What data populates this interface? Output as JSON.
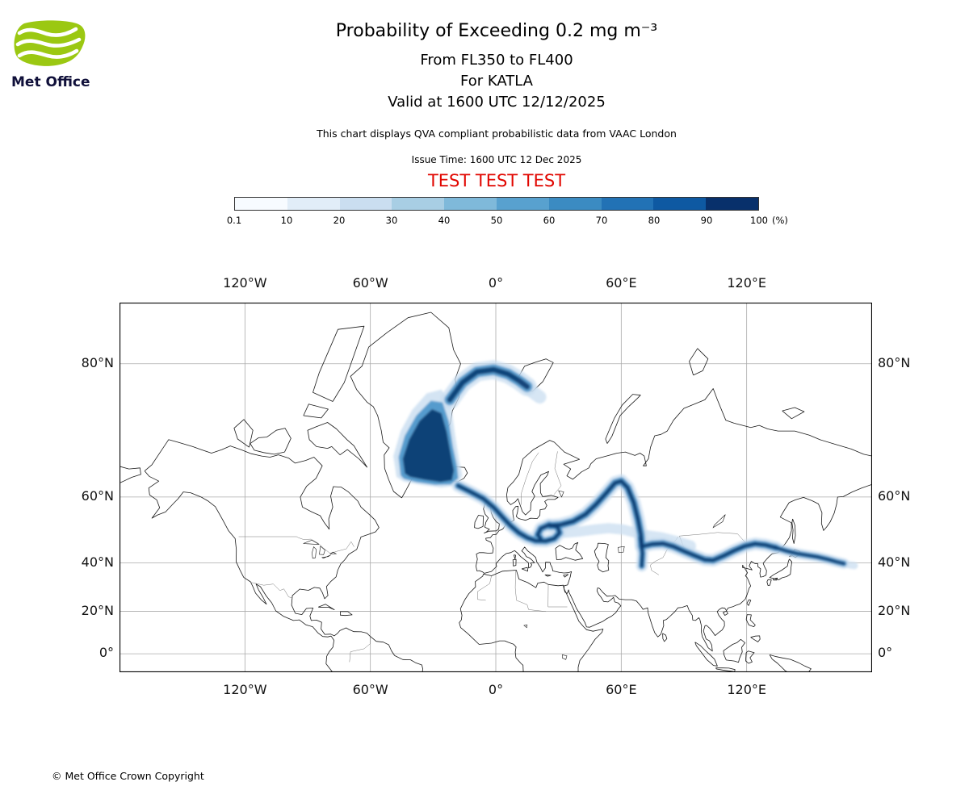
{
  "colors": {
    "accent_green": "#9bc812",
    "logo_navy": "#10103a",
    "test_red": "#e10600",
    "map_grid": "#aaaaaa",
    "coast": "#1a1a1a",
    "border": "#777777"
  },
  "logo": {
    "text": "Met Office"
  },
  "header": {
    "title": "Probability of Exceeding 0.2 mg m⁻³",
    "subtitle_levels": "From FL350 to FL400",
    "subtitle_volcano": "For KATLA",
    "subtitle_valid": "Valid at 1600 UTC 12/12/2025",
    "note": "This chart displays QVA compliant probabilistic data from VAAC London",
    "issue_time": "Issue Time: 1600 UTC 12 Dec 2025",
    "test_banner": "TEST TEST TEST"
  },
  "colorbar": {
    "tick_labels": [
      "0.1",
      "10",
      "20",
      "30",
      "40",
      "50",
      "60",
      "70",
      "80",
      "90",
      "100"
    ],
    "unit": "(%)",
    "colors": [
      "#f7fbff",
      "#e1edf8",
      "#cadef0",
      "#a8cee4",
      "#7fb9da",
      "#58a1cf",
      "#3b8bc2",
      "#2272b5",
      "#0e59a2",
      "#08306b"
    ]
  },
  "map": {
    "x_ticks": [
      {
        "label": "120°W",
        "lon": -120
      },
      {
        "label": "60°W",
        "lon": -60
      },
      {
        "label": "0°",
        "lon": 0
      },
      {
        "label": "60°E",
        "lon": 60
      },
      {
        "label": "120°E",
        "lon": 120
      }
    ],
    "y_ticks": [
      {
        "label": "80°N",
        "lat": 80
      },
      {
        "label": "60°N",
        "lat": 60
      },
      {
        "label": "40°N",
        "lat": 40
      },
      {
        "label": "20°N",
        "lat": 20
      },
      {
        "label": "0°",
        "lat": 0
      }
    ]
  },
  "footer": {
    "copyright": "© Met Office Crown Copyright"
  },
  "chart_data": {
    "type": "heatmap",
    "title": "Probability of Exceeding 0.2 mg m⁻³",
    "threshold": "0.2 mg m⁻³",
    "layer": "FL350 to FL400",
    "volcano": "KATLA",
    "valid_time": "1600 UTC 12/12/2025",
    "issue_time": "1600 UTC 12 Dec 2025",
    "source": "VAAC London",
    "units": "%",
    "scale_ticks": [
      0.1,
      10,
      20,
      30,
      40,
      50,
      60,
      70,
      80,
      90,
      100
    ],
    "projection": "mercator",
    "lon_range": [
      -180,
      180
    ],
    "lat_range": [
      -8.9,
      84
    ],
    "grid": {
      "lons": [
        -120,
        -60,
        0,
        60,
        120
      ],
      "lats": [
        0,
        20,
        40,
        60,
        80
      ]
    },
    "plume": {
      "colors": {
        "low": "#c9ddf0",
        "mid": "#4893c9",
        "high": "#0c3d73"
      },
      "core": {
        "outer": [
          [
            -47.5,
            64.5
          ],
          [
            -49,
            68.5
          ],
          [
            -45.5,
            72.5
          ],
          [
            -40,
            75.3
          ],
          [
            -33,
            77.2
          ],
          [
            -26,
            77.6
          ],
          [
            -21.5,
            76
          ],
          [
            -19.5,
            72
          ],
          [
            -17.5,
            67.5
          ],
          [
            -16,
            64.8
          ],
          [
            -19,
            62.6
          ],
          [
            -26,
            62.2
          ],
          [
            -36,
            62.8
          ],
          [
            -44,
            63.5
          ]
        ],
        "mid": [
          [
            -45.5,
            64.8
          ],
          [
            -46.5,
            68.3
          ],
          [
            -43.5,
            71.8
          ],
          [
            -38,
            74.6
          ],
          [
            -31,
            76.4
          ],
          [
            -25.5,
            76.2
          ],
          [
            -22.5,
            73.8
          ],
          [
            -20.5,
            70
          ],
          [
            -18.5,
            66.5
          ],
          [
            -18,
            64.2
          ],
          [
            -21.5,
            62.9
          ],
          [
            -29,
            62.8
          ],
          [
            -38,
            63.4
          ],
          [
            -44,
            64.1
          ]
        ],
        "inner": [
          [
            -43.5,
            65.2
          ],
          [
            -44.5,
            68
          ],
          [
            -41.5,
            71.2
          ],
          [
            -36.5,
            73.9
          ],
          [
            -30.5,
            75.4
          ],
          [
            -26,
            74.9
          ],
          [
            -23.5,
            72.4
          ],
          [
            -21.5,
            68.8
          ],
          [
            -20,
            65.8
          ],
          [
            -21,
            63.8
          ],
          [
            -26.5,
            63.4
          ],
          [
            -34,
            63.9
          ],
          [
            -41,
            64.5
          ]
        ]
      },
      "tracks": [
        {
          "name": "arctic-hook",
          "intensity": "high",
          "width": 9,
          "points": [
            [
              -22,
              76.5
            ],
            [
              -16,
              78.3
            ],
            [
              -9,
              79.3
            ],
            [
              -1,
              79.5
            ],
            [
              6,
              79.1
            ],
            [
              11,
              78.5
            ],
            [
              15,
              77.9
            ]
          ]
        },
        {
          "name": "hook-tip-fade",
          "intensity": "low",
          "width": 9,
          "points": [
            [
              13,
              78.2
            ],
            [
              18,
              77.3
            ],
            [
              21,
              76.8
            ]
          ]
        },
        {
          "name": "iceland-europe-filament",
          "intensity": "high",
          "width": 6,
          "points": [
            [
              -18,
              62.6
            ],
            [
              -12,
              61.2
            ],
            [
              -6,
              59.6
            ],
            [
              -1,
              57.4
            ],
            [
              3,
              54.9
            ],
            [
              7,
              52.4
            ],
            [
              11,
              50.2
            ],
            [
              15,
              48.7
            ],
            [
              19,
              47.7
            ],
            [
              24,
              47.6
            ],
            [
              28,
              48.4
            ],
            [
              30.5,
              50.2
            ],
            [
              29.5,
              52
            ],
            [
              25.5,
              52.6
            ],
            [
              21.5,
              51.5
            ],
            [
              20,
              49.6
            ],
            [
              21.5,
              48.3
            ]
          ]
        },
        {
          "name": "europe-loop-to-urals",
          "intensity": "high",
          "width": 6.5,
          "points": [
            [
              26,
              52.3
            ],
            [
              31,
              52.6
            ],
            [
              37,
              53.6
            ],
            [
              43,
              55.6
            ],
            [
              48,
              58.2
            ],
            [
              53,
              61
            ],
            [
              57,
              63.2
            ],
            [
              60,
              63.6
            ],
            [
              63,
              62.2
            ],
            [
              66,
              58.6
            ],
            [
              68,
              54.2
            ],
            [
              69.4,
              49.6
            ],
            [
              69.8,
              45.8
            ]
          ]
        },
        {
          "name": "central-asia-streak",
          "intensity": "high",
          "width": 5.5,
          "points": [
            [
              69.2,
              48.5
            ],
            [
              70.2,
              43.5
            ],
            [
              69.8,
              38.9
            ]
          ]
        },
        {
          "name": "east-asia-band",
          "intensity": "high",
          "width": 6,
          "points": [
            [
              69.8,
              45.8
            ],
            [
              75,
              46.6
            ],
            [
              80,
              46.8
            ],
            [
              85,
              45.8
            ],
            [
              90,
              44.2
            ],
            [
              95,
              42.7
            ],
            [
              100,
              41.2
            ],
            [
              104,
              41
            ],
            [
              109,
              42.6
            ],
            [
              114,
              44.4
            ],
            [
              119,
              45.9
            ],
            [
              124,
              46.7
            ],
            [
              129,
              46.3
            ],
            [
              134,
              45.4
            ]
          ]
        },
        {
          "name": "pacific-tail",
          "intensity": "high",
          "width": 5,
          "points": [
            [
              134,
              45.4
            ],
            [
              139,
              44.3
            ],
            [
              144,
              43.4
            ],
            [
              149,
              42.8
            ],
            [
              154,
              42.2
            ],
            [
              159,
              41.3
            ],
            [
              163,
              40.4
            ],
            [
              166.5,
              39.8
            ]
          ]
        },
        {
          "name": "tail-fade",
          "intensity": "low",
          "width": 5,
          "points": [
            [
              165,
              40
            ],
            [
              169,
              39.3
            ],
            [
              171.5,
              39
            ]
          ]
        },
        {
          "name": "kazakh-speckle",
          "intensity": "low",
          "width": 7,
          "points": [
            [
              33,
              50.2
            ],
            [
              40,
              50.6
            ],
            [
              47,
              51.2
            ],
            [
              54,
              51.6
            ],
            [
              61,
              51.2
            ],
            [
              67,
              50.2
            ]
          ]
        },
        {
          "name": "mongolia-speckle",
          "intensity": "low",
          "width": 8,
          "points": [
            [
              72,
              49.2
            ],
            [
              79,
              48.6
            ],
            [
              86,
              47.4
            ],
            [
              93,
              45.9
            ]
          ]
        }
      ]
    }
  }
}
